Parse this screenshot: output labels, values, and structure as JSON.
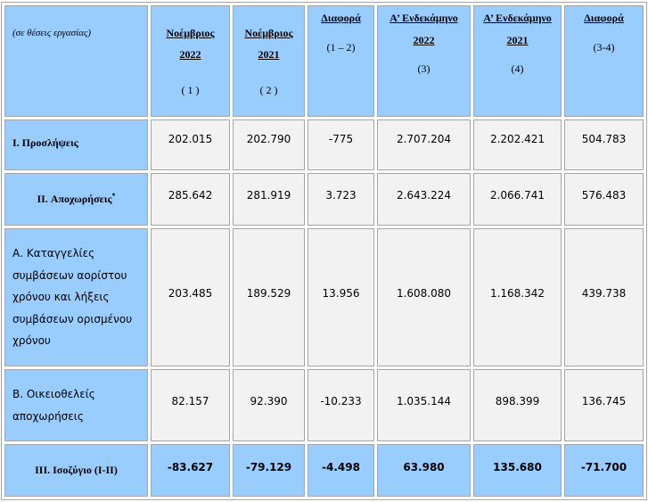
{
  "table": {
    "unit_note": "(σε θέσεις εργασίας)",
    "columns": [
      {
        "title": "Νοέμβριος",
        "year": "2022",
        "ref": "( 1 )"
      },
      {
        "title": "Νοέμβριος",
        "year": "2021",
        "ref": "( 2 )"
      },
      {
        "title": "Διαφορά",
        "ref": "(1 – 2)"
      },
      {
        "title": "Α’ Ενδεκάμηνο",
        "year": "2022",
        "ref": "(3)"
      },
      {
        "title": "Α’ Ενδεκάμηνο",
        "year": "2021",
        "ref": "(4)"
      },
      {
        "title": "Διαφορά",
        "ref": "(3-4)"
      }
    ],
    "rows": [
      {
        "label": "I. Προσλήψεις",
        "values": [
          "202.015",
          "202.790",
          "-775",
          "2.707.204",
          "2.202.421",
          "504.783"
        ]
      },
      {
        "label": "II. Αποχωρήσεις",
        "mark": "*",
        "values": [
          "285.642",
          "281.919",
          "3.723",
          "2.643.224",
          "2.066.741",
          "576.483"
        ]
      },
      {
        "label": "Α. Καταγγελίες συμβάσεων αορίστου χρόνου και λήξεις συμβάσεων ορισμένου χρόνου",
        "values": [
          "203.485",
          "189.529",
          "13.956",
          "1.608.080",
          "1.168.342",
          "439.738"
        ]
      },
      {
        "label": "Β. Οικειοθελείς αποχωρήσεις",
        "values": [
          "82.157",
          "92.390",
          "-10.233",
          "1.035.144",
          "898.399",
          "136.745"
        ]
      },
      {
        "label": "III. Ισοζύγιο (I-II)",
        "values": [
          "-83.627",
          "-79.129",
          "-4.498",
          "63.980",
          "135.680",
          "-71.700"
        ]
      }
    ]
  },
  "colors": {
    "header_bg": "#99ccff",
    "cell_bg": "#f2f2f2",
    "border": "#a6a6a6"
  }
}
